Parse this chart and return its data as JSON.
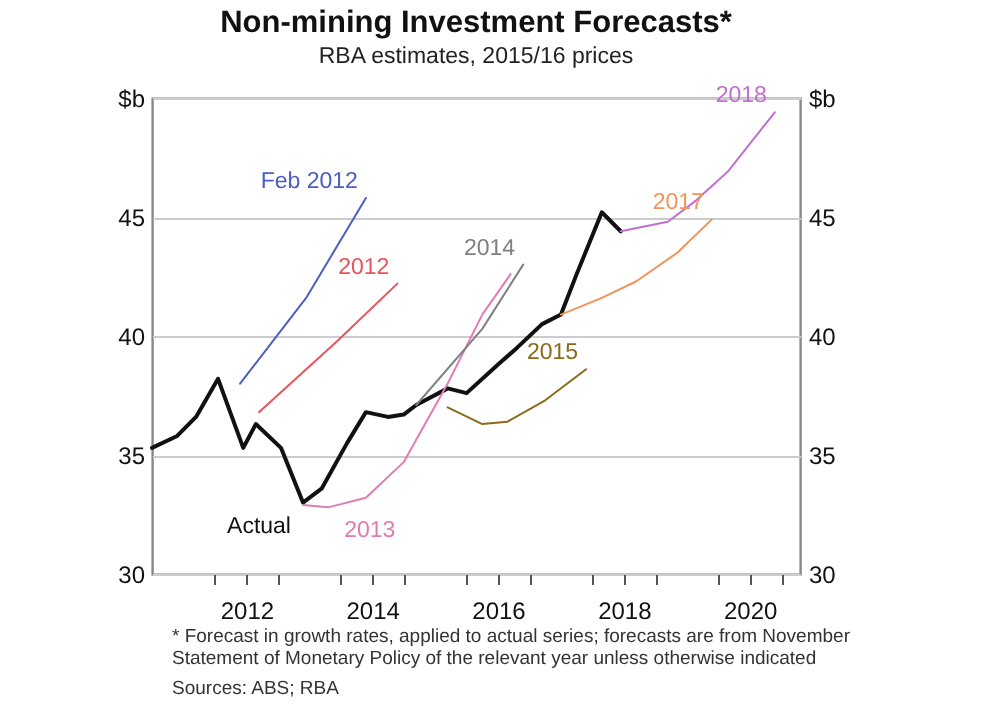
{
  "chart_data": {
    "type": "line",
    "title": "Non-mining Investment Forecasts*",
    "subtitle": "RBA estimates, 2015/16 prices",
    "xlim": [
      2010.5,
      2020.8
    ],
    "xticks": [
      {
        "value": 2011.5,
        "label": null
      },
      2012,
      {
        "value": 2012.5,
        "label": null
      },
      {
        "value": 2013.5,
        "label": null
      },
      2014,
      {
        "value": 2014.5,
        "label": null
      },
      {
        "value": 2015.5,
        "label": null
      },
      2016,
      {
        "value": 2016.5,
        "label": null
      },
      {
        "value": 2017.5,
        "label": null
      },
      2018,
      {
        "value": 2018.5,
        "label": null
      },
      {
        "value": 2019.5,
        "label": null
      },
      2020,
      {
        "value": 2020.5,
        "label": null
      }
    ],
    "ylim": [
      30,
      50
    ],
    "yticks": [
      30,
      35,
      40,
      45,
      {
        "value": 50,
        "label": "$b"
      }
    ],
    "y2lim": [
      30,
      50
    ],
    "y2ticks": [
      30,
      35,
      40,
      45,
      {
        "value": 50,
        "label": "$b"
      }
    ],
    "grid": "y",
    "line_style": "solid",
    "series": [
      {
        "name": "Actual",
        "color": "#111111",
        "x": [
          2010.5,
          2010.9,
          2011.2,
          2011.55,
          2011.95,
          2012.15,
          2012.55,
          2012.9,
          2013.2,
          2013.6,
          2013.9,
          2014.25,
          2014.5,
          2014.7,
          2015.2,
          2015.5,
          2016.0,
          2016.3,
          2016.7,
          2017.0,
          2017.25,
          2017.65,
          2017.95
        ],
        "values": [
          35.3,
          35.8,
          36.6,
          38.2,
          35.3,
          36.3,
          35.3,
          33.0,
          33.6,
          35.5,
          36.8,
          36.6,
          36.7,
          37.1,
          37.8,
          37.6,
          38.8,
          39.5,
          40.5,
          40.9,
          42.6,
          45.2,
          44.4
        ]
      },
      {
        "name": "Feb 2012",
        "color": "#4a5fc1",
        "x": [
          2011.9,
          2012.95,
          2013.9
        ],
        "values": [
          38.0,
          41.6,
          45.8
        ]
      },
      {
        "name": "2012",
        "color": "#e8545a",
        "x": [
          2012.2,
          2013.45,
          2014.4
        ],
        "values": [
          36.8,
          39.8,
          42.2
        ]
      },
      {
        "name": "2013",
        "color": "#e07cb0",
        "x": [
          2012.9,
          2013.3,
          2013.9,
          2014.5,
          2015.2,
          2015.75,
          2016.2
        ],
        "values": [
          32.9,
          32.8,
          33.2,
          34.7,
          38.0,
          40.9,
          42.6
        ]
      },
      {
        "name": "2014",
        "color": "#808080",
        "x": [
          2014.7,
          2015.75,
          2016.4
        ],
        "values": [
          37.1,
          40.3,
          43.0
        ]
      },
      {
        "name": "2015",
        "color": "#8b6a1a",
        "x": [
          2015.2,
          2015.75,
          2016.15,
          2016.75,
          2017.4
        ],
        "values": [
          37.0,
          36.3,
          36.4,
          37.3,
          38.6
        ]
      },
      {
        "name": "2017",
        "color": "#f0955a",
        "x": [
          2017.0,
          2017.65,
          2018.2,
          2018.85,
          2019.4
        ],
        "values": [
          40.9,
          41.6,
          42.3,
          43.5,
          44.9
        ]
      },
      {
        "name": "2018",
        "color": "#c070d0",
        "x": [
          2017.95,
          2018.7,
          2019.15,
          2019.65,
          2020.4
        ],
        "values": [
          44.4,
          44.8,
          45.7,
          46.9,
          49.4
        ]
      }
    ],
    "annotations": [
      "* Forecast in growth rates, applied to actual series; forecasts are from November Statement of Monetary Policy of the relevant year unless otherwise indicated",
      "Sources: ABS; RBA"
    ]
  }
}
